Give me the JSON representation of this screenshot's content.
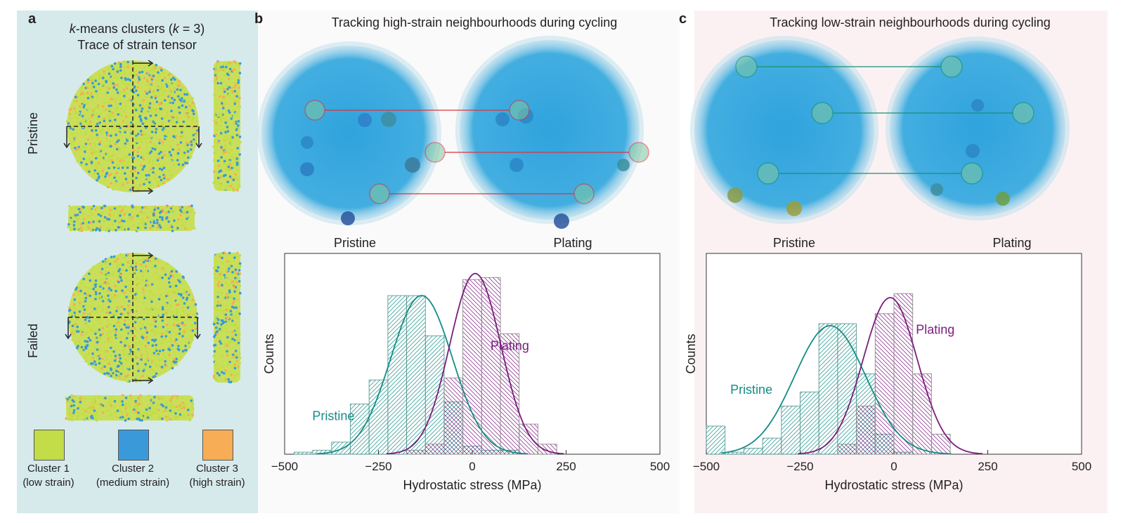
{
  "panel_a": {
    "letter": "a",
    "title_k": "k",
    "title_rest": "-means clusters (",
    "title_k2": "k",
    "title_eq": " = 3)",
    "subtitle": "Trace of strain tensor",
    "row1_label": "Pristine",
    "row2_label": "Failed",
    "legend": [
      {
        "name": "Cluster 1",
        "desc": "(low strain)",
        "color": "#c2dd47"
      },
      {
        "name": "Cluster 2",
        "desc": "(medium strain)",
        "color": "#3a9ad9"
      },
      {
        "name": "Cluster 3",
        "desc": "(high strain)",
        "color": "#f6ad55"
      }
    ]
  },
  "panel_b": {
    "letter": "b",
    "title": "Tracking high-strain neighbourhoods during cycling",
    "left_label": "Pristine",
    "right_label": "Plating",
    "link_color": "#d9353f"
  },
  "panel_c": {
    "letter": "c",
    "title": "Tracking low-strain neighbourhoods during cycling",
    "left_label": "Pristine",
    "right_label": "Plating",
    "link_color": "#1a8f6f"
  },
  "colors": {
    "pristine": "#138d85",
    "plating": "#7b1c7e",
    "particle": "#35a7dc"
  },
  "chart_data": [
    {
      "type": "bar",
      "panel": "b",
      "title": "",
      "xlabel": "Hydrostatic stress (MPa)",
      "ylabel": "Counts",
      "xlim": [
        -500,
        500
      ],
      "xticks": [
        "−500",
        "−250",
        "0",
        "250",
        "500"
      ],
      "xtick_values": [
        -500,
        -250,
        0,
        250,
        500
      ],
      "bin_edges": [
        -475,
        -425,
        -375,
        -325,
        -275,
        -225,
        -175,
        -125,
        -75,
        -25,
        25,
        75,
        125,
        175,
        225
      ],
      "series": [
        {
          "name": "Pristine",
          "label_x": -370,
          "label_y": 0.17,
          "values": [
            0.01,
            0.02,
            0.06,
            0.25,
            0.37,
            0.79,
            0.79,
            0.59,
            0.26,
            0.04,
            0.02,
            0.02,
            0.0,
            0.0
          ]
        },
        {
          "name": "Plating",
          "label_x": 100,
          "label_y": 0.52,
          "values": [
            0.0,
            0.0,
            0.0,
            0.0,
            0.0,
            0.0,
            0.02,
            0.05,
            0.38,
            0.87,
            0.88,
            0.6,
            0.15,
            0.05
          ]
        }
      ],
      "fits": [
        {
          "name": "Pristine",
          "mean": -135,
          "sigma": 82,
          "peak": 0.79
        },
        {
          "name": "Plating",
          "mean": 8,
          "sigma": 68,
          "peak": 0.9
        }
      ]
    },
    {
      "type": "bar",
      "panel": "c",
      "title": "",
      "xlabel": "Hydrostatic stress (MPa)",
      "ylabel": "Counts",
      "xlim": [
        -500,
        500
      ],
      "xticks": [
        "−500",
        "−250",
        "0",
        "250",
        "500"
      ],
      "xtick_values": [
        -500,
        -250,
        0,
        250,
        500
      ],
      "bin_edges": [
        -500,
        -450,
        -400,
        -350,
        -300,
        -250,
        -200,
        -150,
        -100,
        -50,
        0,
        50,
        100,
        150,
        200
      ],
      "series": [
        {
          "name": "Pristine",
          "label_x": -380,
          "label_y": 0.3,
          "values": [
            0.14,
            0.01,
            0.03,
            0.08,
            0.24,
            0.31,
            0.65,
            0.65,
            0.4,
            0.1,
            0.01,
            0.0,
            0.0,
            0.0
          ]
        },
        {
          "name": "Plating",
          "label_x": 110,
          "label_y": 0.6,
          "values": [
            0.0,
            0.0,
            0.0,
            0.0,
            0.0,
            0.0,
            0.0,
            0.05,
            0.24,
            0.7,
            0.8,
            0.4,
            0.1,
            0.0
          ]
        }
      ],
      "fits": [
        {
          "name": "Pristine",
          "mean": -170,
          "sigma": 95,
          "peak": 0.64
        },
        {
          "name": "Plating",
          "mean": -10,
          "sigma": 72,
          "peak": 0.78
        }
      ]
    }
  ]
}
